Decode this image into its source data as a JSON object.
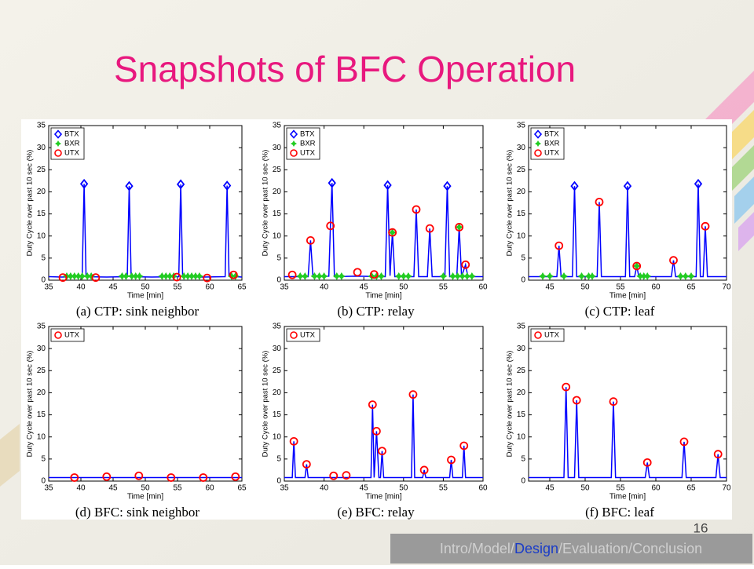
{
  "slide": {
    "title": "Snapshots of BFC Operation",
    "page_number": "16",
    "nav": [
      "Intro",
      "Model",
      "Design",
      "Evaluation",
      "Conclusion"
    ],
    "nav_separator": "/",
    "nav_current": 2
  },
  "chart_data": [
    {
      "type": "line",
      "caption": "(a) CTP: sink neighbor",
      "xlabel": "Time [min]",
      "ylabel": "Duty Cycle over past 10 sec (%)",
      "xlim": [
        35,
        65
      ],
      "xticks": [
        35,
        40,
        45,
        50,
        55,
        60,
        65
      ],
      "ylim": [
        0,
        35
      ],
      "yticks": [
        0,
        5,
        10,
        15,
        20,
        25,
        30,
        35
      ],
      "legend": "upper left",
      "series": [
        {
          "style": "line",
          "color": "#0000ff",
          "x": [
            35,
            37,
            40.2,
            40.5,
            40.8,
            44,
            47.2,
            47.5,
            47.8,
            51,
            55.2,
            55.5,
            55.8,
            59,
            62.4,
            62.7,
            63,
            65
          ],
          "values": [
            0.8,
            0.7,
            0.8,
            21.8,
            0.8,
            0.7,
            0.8,
            21.3,
            0.8,
            0.7,
            0.8,
            21.7,
            0.8,
            0.7,
            0.8,
            21.4,
            0.9,
            0.7
          ]
        },
        {
          "name": "BTX",
          "style": "markers",
          "marker": "diamond",
          "color": "#0000ff",
          "x": [
            40.5,
            47.5,
            55.5,
            62.7
          ],
          "values": [
            21.8,
            21.3,
            21.7,
            21.4
          ]
        },
        {
          "name": "BXR",
          "style": "markers",
          "marker": "star",
          "color": "#22cc22",
          "x": [
            37.8,
            38.4,
            39,
            39.6,
            40.2,
            41,
            41.6,
            46.4,
            47,
            47.9,
            48.5,
            49.1,
            52.6,
            53.2,
            53.8,
            54.4,
            56,
            56.6,
            57.2,
            57.8,
            58.4,
            63.4,
            64
          ],
          "values": [
            0.9,
            0.9,
            0.9,
            0.9,
            0.9,
            0.9,
            0.9,
            0.9,
            0.9,
            0.9,
            0.9,
            0.9,
            0.9,
            0.9,
            0.9,
            0.9,
            0.9,
            0.9,
            0.9,
            0.9,
            0.9,
            0.9,
            0.9
          ]
        },
        {
          "name": "UTX",
          "style": "markers",
          "marker": "circle",
          "color": "#ff0000",
          "x": [
            37.2,
            42.3,
            54.9,
            59.6,
            63.7
          ],
          "values": [
            0.6,
            0.6,
            0.7,
            0.5,
            1.2
          ]
        }
      ]
    },
    {
      "type": "line",
      "caption": "(b) CTP: relay",
      "xlabel": "Time [min]",
      "ylabel": "Duty Cycle over past 10 sec (%)",
      "xlim": [
        35,
        60
      ],
      "xticks": [
        35,
        40,
        45,
        50,
        55,
        60
      ],
      "ylim": [
        0,
        35
      ],
      "yticks": [
        0,
        5,
        10,
        15,
        20,
        25,
        30,
        35
      ],
      "legend": "upper left",
      "series": [
        {
          "style": "line",
          "color": "#0000ff",
          "x": [
            35,
            38,
            38.3,
            38.6,
            40.6,
            40.8,
            41,
            41.3,
            44,
            47.7,
            48,
            48.3,
            48.6,
            48.9,
            51.3,
            51.6,
            51.9,
            53,
            53.3,
            53.6,
            55.2,
            55.5,
            55.8,
            56.7,
            57,
            57.3,
            57.8,
            58.1,
            60
          ],
          "values": [
            0.8,
            0.8,
            9,
            0.8,
            0.9,
            12.3,
            22,
            0.8,
            0.9,
            0.8,
            21.5,
            1,
            10.8,
            0.8,
            0.8,
            16,
            0.8,
            0.8,
            11.7,
            0.8,
            0.8,
            21.3,
            0.8,
            0.8,
            12,
            0.8,
            3.5,
            0.8,
            0.8
          ]
        },
        {
          "name": "BTX",
          "style": "markers",
          "marker": "diamond",
          "color": "#0000ff",
          "x": [
            41,
            48,
            55.5
          ],
          "values": [
            22,
            21.5,
            21.3
          ]
        },
        {
          "name": "BXR",
          "style": "markers",
          "marker": "star",
          "color": "#22cc22",
          "x": [
            37,
            37.6,
            38.8,
            39.4,
            40,
            41.6,
            42.2,
            46,
            46.6,
            47.2,
            48.6,
            49.4,
            50,
            50.6,
            55,
            56.2,
            56.8,
            57,
            57.4,
            58,
            58.6
          ],
          "values": [
            0.9,
            0.9,
            0.9,
            0.9,
            0.9,
            0.9,
            0.9,
            0.9,
            0.9,
            0.9,
            10.8,
            0.9,
            0.9,
            0.9,
            0.9,
            0.9,
            0.9,
            12,
            0.9,
            0.9,
            0.9
          ]
        },
        {
          "name": "UTX",
          "style": "markers",
          "marker": "circle",
          "color": "#ff0000",
          "x": [
            36,
            38.3,
            40.8,
            44.2,
            46.3,
            48.6,
            51.6,
            53.3,
            57,
            57.8
          ],
          "values": [
            1.2,
            9,
            12.3,
            1.8,
            1.3,
            10.8,
            16,
            11.7,
            12,
            3.5
          ]
        }
      ]
    },
    {
      "type": "line",
      "caption": "(c) CTP: leaf",
      "xlabel": "Time [min]",
      "ylabel": "Duty Cycle over past 10 sec (%)",
      "xlim": [
        42,
        70
      ],
      "xticks": [
        45,
        50,
        55,
        60,
        65,
        70
      ],
      "ylim": [
        0,
        35
      ],
      "yticks": [
        0,
        5,
        10,
        15,
        20,
        25,
        30,
        35
      ],
      "legend": "upper left",
      "series": [
        {
          "style": "line",
          "color": "#0000ff",
          "x": [
            42,
            46,
            46.3,
            46.6,
            48.2,
            48.5,
            48.8,
            51.7,
            52,
            52.3,
            55.7,
            56,
            56.3,
            57,
            57.3,
            57.6,
            62.2,
            62.5,
            62.8,
            65.7,
            66,
            66.3,
            66.7,
            67,
            67.3,
            70
          ],
          "values": [
            0.8,
            0.8,
            7.8,
            0.8,
            0.8,
            21.3,
            0.8,
            0.8,
            17.7,
            0.8,
            0.8,
            21.3,
            0.8,
            0.8,
            3.2,
            0.8,
            0.8,
            4.5,
            0.8,
            0.8,
            21.8,
            0.8,
            0.8,
            12.2,
            0.8,
            0.8
          ]
        },
        {
          "name": "BTX",
          "style": "markers",
          "marker": "diamond",
          "color": "#0000ff",
          "x": [
            48.5,
            56,
            66
          ],
          "values": [
            21.3,
            21.3,
            21.8
          ]
        },
        {
          "name": "BXR",
          "style": "markers",
          "marker": "star",
          "color": "#22cc22",
          "x": [
            44,
            45,
            47,
            49.5,
            50.5,
            51,
            57.3,
            57.8,
            58.3,
            58.8,
            63.5,
            64.2,
            65
          ],
          "values": [
            0.9,
            0.9,
            0.9,
            0.9,
            0.9,
            0.9,
            3.2,
            0.9,
            0.9,
            0.9,
            0.9,
            0.9,
            0.9
          ]
        },
        {
          "name": "UTX",
          "style": "markers",
          "marker": "circle",
          "color": "#ff0000",
          "x": [
            46.3,
            52,
            57.3,
            62.5,
            67
          ],
          "values": [
            7.8,
            17.7,
            3.2,
            4.5,
            12.2
          ]
        }
      ]
    },
    {
      "type": "line",
      "caption": "(d) BFC: sink neighbor",
      "xlabel": "Time [min]",
      "ylabel": "Duty Cycle over past 10 sec (%)",
      "xlim": [
        35,
        65
      ],
      "xticks": [
        35,
        40,
        45,
        50,
        55,
        60,
        65
      ],
      "ylim": [
        0,
        35
      ],
      "yticks": [
        0,
        5,
        10,
        15,
        20,
        25,
        30,
        35
      ],
      "legend": "upper left",
      "series": [
        {
          "style": "line",
          "color": "#0000ff",
          "x": [
            35,
            40,
            45,
            50,
            55,
            60,
            65
          ],
          "values": [
            0.8,
            0.8,
            0.8,
            0.8,
            0.8,
            0.8,
            0.8
          ]
        },
        {
          "name": "UTX",
          "style": "markers",
          "marker": "circle",
          "color": "#ff0000",
          "x": [
            39,
            44,
            49,
            54,
            59,
            64
          ],
          "values": [
            0.8,
            1,
            1.2,
            0.8,
            0.8,
            1
          ]
        }
      ]
    },
    {
      "type": "line",
      "caption": "(e) BFC: relay",
      "xlabel": "Time [min]",
      "ylabel": "Duty Cycle over past 10 sec (%)",
      "xlim": [
        35,
        60
      ],
      "xticks": [
        35,
        40,
        45,
        50,
        55,
        60
      ],
      "ylim": [
        0,
        35
      ],
      "yticks": [
        0,
        5,
        10,
        15,
        20,
        25,
        30,
        35
      ],
      "legend": "upper left",
      "series": [
        {
          "style": "line",
          "color": "#0000ff",
          "x": [
            35,
            36,
            36.2,
            36.4,
            37.6,
            37.8,
            38,
            45.9,
            46.1,
            46.3,
            46.6,
            46.9,
            47.1,
            47.3,
            47.5,
            51,
            51.2,
            51.4,
            52.4,
            52.6,
            52.8,
            55.8,
            56,
            56.2,
            57.4,
            57.6,
            57.8,
            60
          ],
          "values": [
            0.8,
            0.8,
            9,
            0.8,
            0.8,
            3.8,
            0.8,
            0.8,
            17.3,
            0.8,
            11.3,
            0.8,
            0.8,
            6.8,
            0.8,
            0.8,
            19.6,
            0.8,
            0.8,
            2.5,
            0.8,
            0.8,
            4.8,
            0.8,
            0.8,
            8,
            0.8,
            0.8
          ]
        },
        {
          "name": "UTX",
          "style": "markers",
          "marker": "circle",
          "color": "#ff0000",
          "x": [
            36.2,
            37.8,
            41.2,
            42.8,
            46.1,
            46.6,
            47.3,
            51.2,
            52.6,
            56,
            57.6
          ],
          "values": [
            9,
            3.8,
            1.2,
            1.3,
            17.3,
            11.3,
            6.8,
            19.6,
            2.5,
            4.8,
            8
          ]
        }
      ]
    },
    {
      "type": "line",
      "caption": "(f) BFC: leaf",
      "xlabel": "Time [min]",
      "ylabel": "Duty Cycle over past 10 sec (%)",
      "xlim": [
        42,
        70
      ],
      "xticks": [
        45,
        50,
        55,
        60,
        65,
        70
      ],
      "ylim": [
        0,
        35
      ],
      "yticks": [
        0,
        5,
        10,
        15,
        20,
        25,
        30,
        35
      ],
      "legend": "upper left",
      "series": [
        {
          "style": "line",
          "color": "#0000ff",
          "x": [
            42,
            47,
            47.3,
            47.6,
            48.5,
            48.8,
            49.1,
            53.7,
            54,
            54.3,
            58.5,
            58.8,
            59.1,
            63.7,
            64,
            64.3,
            68.5,
            68.8,
            69.1,
            70
          ],
          "values": [
            0.8,
            0.8,
            21.3,
            0.8,
            0.8,
            18.3,
            0.8,
            0.8,
            18,
            0.8,
            0.8,
            4.2,
            0.8,
            0.8,
            8.9,
            0.8,
            0.8,
            6.1,
            0.8,
            0.8
          ]
        },
        {
          "name": "UTX",
          "style": "markers",
          "marker": "circle",
          "color": "#ff0000",
          "x": [
            47.3,
            48.8,
            54,
            58.8,
            64,
            68.8
          ],
          "values": [
            21.3,
            18.3,
            18,
            4.2,
            8.9,
            6.1
          ]
        }
      ]
    }
  ]
}
